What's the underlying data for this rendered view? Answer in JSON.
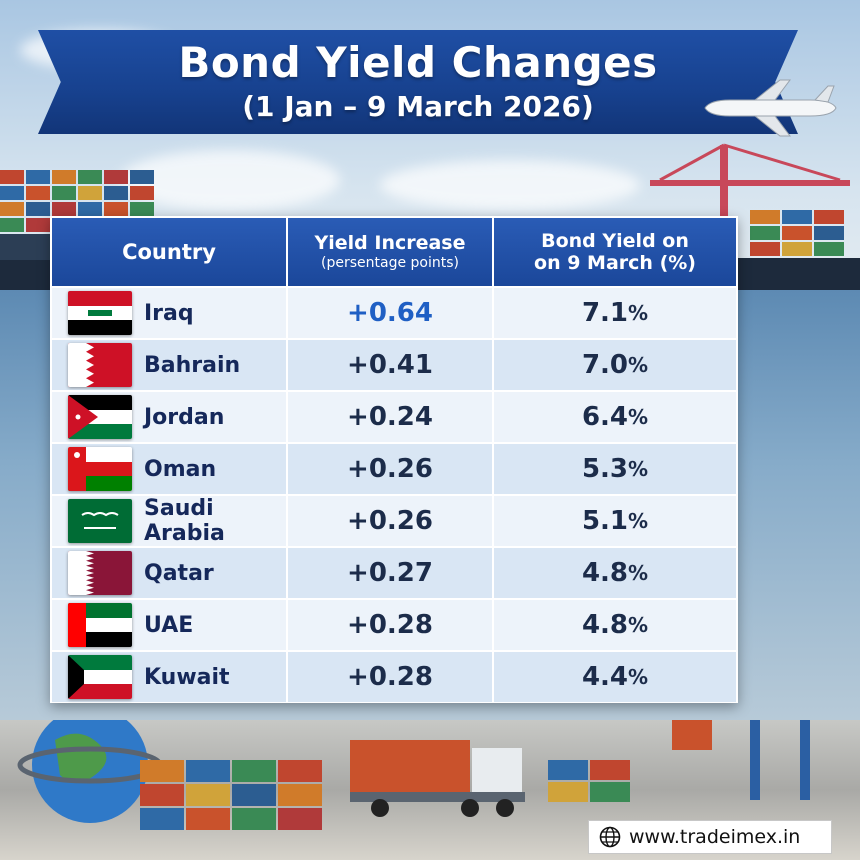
{
  "header": {
    "title": "Bond Yield Changes",
    "subtitle": "(1 Jan – 9 March 2026)"
  },
  "table": {
    "columns": {
      "country": "Country",
      "yield_increase": "Yield Increase",
      "yield_increase_sub": "(persentage points)",
      "bond_yield_line1": "Bond Yield on",
      "bond_yield_line2": "on 9 March (%)"
    },
    "rows": [
      {
        "country": "Iraq",
        "increase": "+0.64",
        "yield": "7.1",
        "flag": "iraq-flag"
      },
      {
        "country": "Bahrain",
        "increase": "+0.41",
        "yield": "7.0",
        "flag": "bahrain-flag"
      },
      {
        "country": "Jordan",
        "increase": "+0.24",
        "yield": "6.4",
        "flag": "jordan-flag"
      },
      {
        "country": "Oman",
        "increase": "+0.26",
        "yield": "5.3",
        "flag": "oman-flag"
      },
      {
        "country": "Saudi Arabia",
        "increase": "+0.26",
        "yield": "5.1",
        "flag": "saudi-arabia-flag"
      },
      {
        "country": "Qatar",
        "increase": "+0.27",
        "yield": "4.8",
        "flag": "qatar-flag"
      },
      {
        "country": "UAE",
        "increase": "+0.28",
        "yield": "4.8",
        "flag": "uae-flag"
      },
      {
        "country": "Kuwait",
        "increase": "+0.28",
        "yield": "4.4",
        "flag": "kuwait-flag"
      }
    ],
    "percent_sign": "%"
  },
  "footer": {
    "website": "www.tradeimex.in",
    "icon": "globe-icon"
  },
  "colors": {
    "banner": "#1b479a",
    "header_row": "#2a5cb6",
    "row_light": "#edf3fa",
    "row_dark": "#d9e6f4",
    "highlight_value": "#1f5fc4"
  }
}
